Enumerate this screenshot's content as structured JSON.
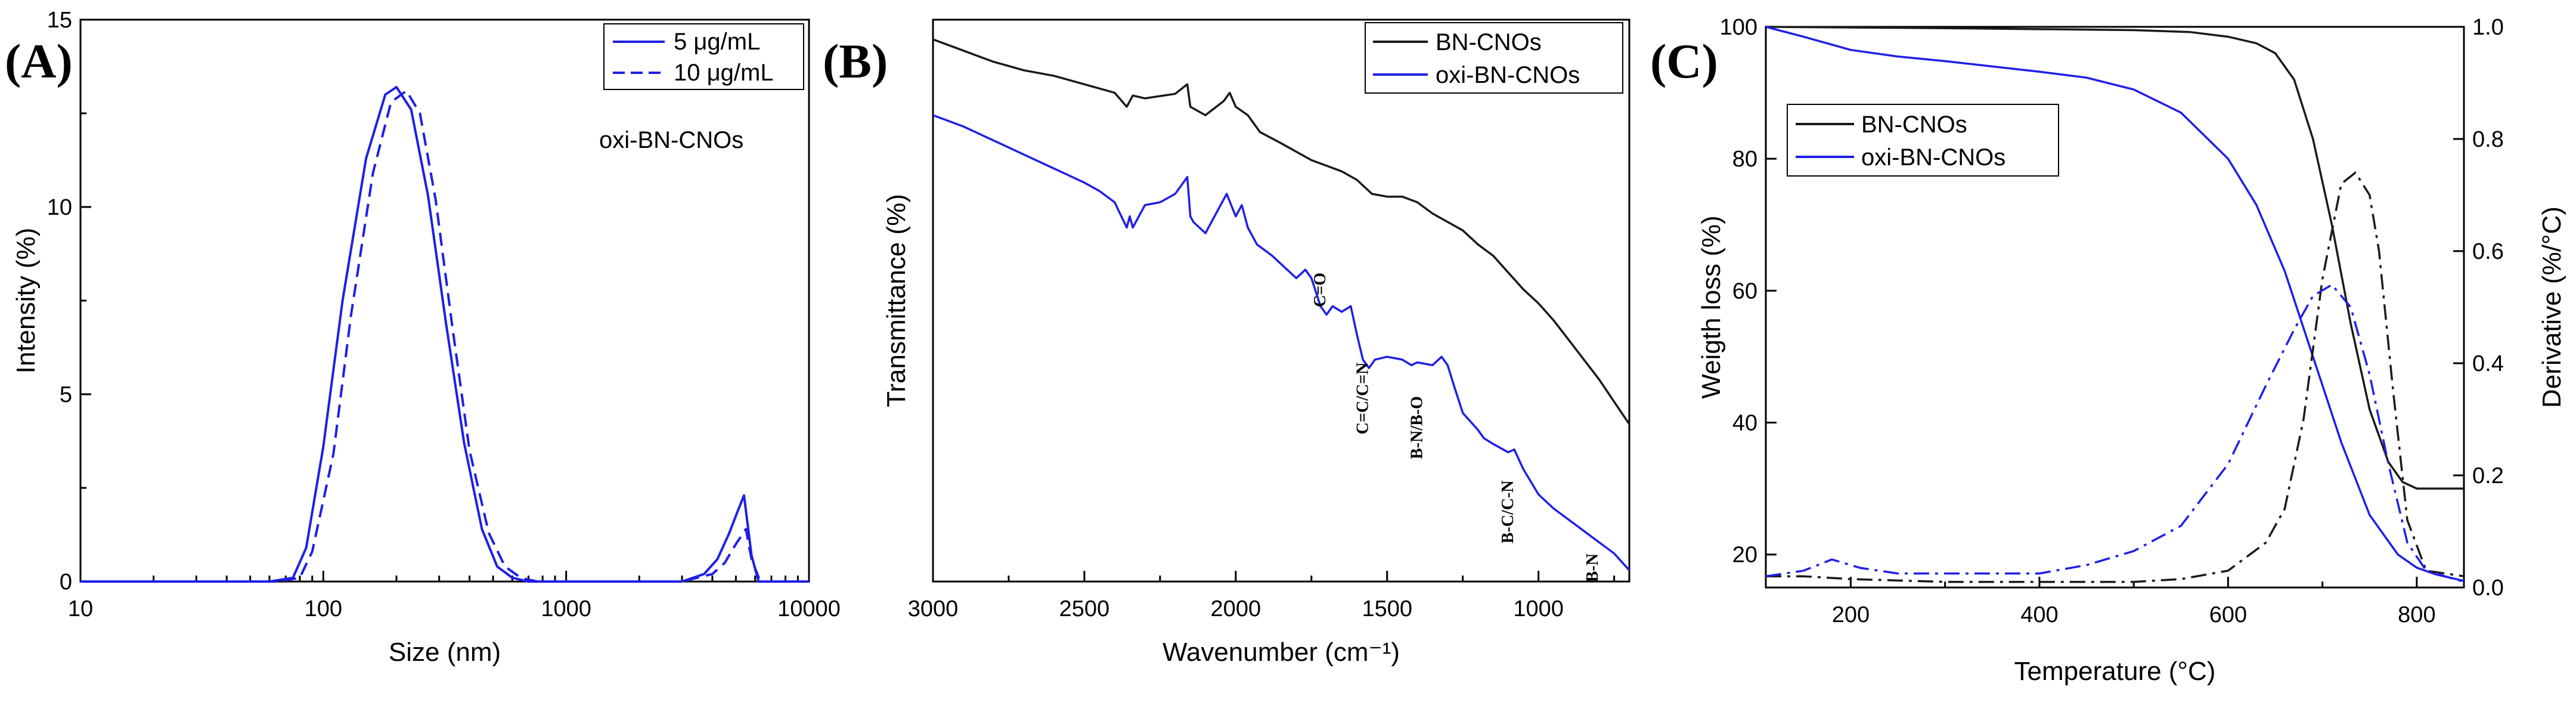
{
  "colors": {
    "blue": "#1f1fe6",
    "black": "#1a1a1a"
  },
  "chart_data": [
    {
      "type": "line",
      "panel_label": "(A)",
      "xlabel": "Size (nm)",
      "ylabel": "Intensity (%)",
      "xscale": "log",
      "xlim": [
        10,
        10000
      ],
      "ylim": [
        0,
        15
      ],
      "x_ticks": [
        "10",
        "100",
        "1000",
        "10000"
      ],
      "y_ticks": [
        "0",
        "5",
        "10",
        "15"
      ],
      "annotation": "oxi-BN-CNOs",
      "legend": [
        "5 μg/mL",
        "10 μg/mL"
      ],
      "series": [
        {
          "name": "5 μg/mL",
          "style": "solid",
          "x": [
            10,
            60,
            75,
            85,
            100,
            120,
            150,
            180,
            200,
            230,
            270,
            320,
            380,
            450,
            520,
            600,
            700,
            1000,
            2000,
            3000,
            3700,
            4200,
            4700,
            5100,
            5400,
            5800,
            6200,
            7000,
            10000
          ],
          "y": [
            0,
            0,
            0.1,
            0.9,
            3.6,
            7.5,
            11.3,
            13.0,
            13.2,
            12.6,
            10.3,
            6.9,
            3.7,
            1.4,
            0.4,
            0.1,
            0,
            0,
            0,
            0,
            0.2,
            0.6,
            1.3,
            1.9,
            2.3,
            0.7,
            0,
            0,
            0
          ]
        },
        {
          "name": "10 μg/mL",
          "style": "dashed",
          "x": [
            10,
            65,
            80,
            90,
            110,
            130,
            160,
            190,
            220,
            250,
            290,
            340,
            400,
            480,
            560,
            650,
            760,
            1000,
            2000,
            3000,
            4000,
            4500,
            5000,
            5500,
            5800,
            6300,
            7000,
            10000
          ],
          "y": [
            0,
            0,
            0.1,
            0.8,
            3.4,
            7.1,
            10.9,
            12.8,
            13.1,
            12.5,
            10.2,
            6.8,
            3.5,
            1.3,
            0.4,
            0.1,
            0,
            0,
            0,
            0,
            0.2,
            0.5,
            1.0,
            1.4,
            0.6,
            0,
            0,
            0
          ]
        }
      ]
    },
    {
      "type": "line",
      "panel_label": "(B)",
      "xlabel": "Wavenumber (cm⁻¹)",
      "ylabel": "Transmittance (%)",
      "xlim": [
        3000,
        700
      ],
      "ylim": [
        0,
        100
      ],
      "x_ticks": [
        "3000",
        "2500",
        "2000",
        "1500",
        "1000"
      ],
      "legend": [
        "BN-CNOs",
        "oxi-BN-CNOs"
      ],
      "peak_labels": [
        {
          "text": "C=O",
          "wavenumber": 1700,
          "y": 55
        },
        {
          "text": "C=C/C=N",
          "wavenumber": 1560,
          "y": 39
        },
        {
          "text": "B-N/B-O",
          "wavenumber": 1380,
          "y": 33
        },
        {
          "text": "B-C/C-N",
          "wavenumber": 1080,
          "y": 18
        },
        {
          "text": "B-N",
          "wavenumber": 800,
          "y": 5
        }
      ],
      "series": [
        {
          "name": "BN-CNOs",
          "style": "solid",
          "x": [
            3000,
            2900,
            2800,
            2700,
            2600,
            2500,
            2400,
            2360,
            2340,
            2300,
            2200,
            2160,
            2150,
            2100,
            2040,
            2020,
            2000,
            1960,
            1920,
            1850,
            1800,
            1750,
            1700,
            1650,
            1600,
            1550,
            1500,
            1450,
            1400,
            1350,
            1300,
            1250,
            1200,
            1150,
            1100,
            1050,
            1000,
            950,
            900,
            850,
            800,
            750,
            700
          ],
          "y": [
            96.5,
            94.5,
            92.5,
            91,
            90,
            88.5,
            87,
            84.5,
            86.5,
            86,
            86.8,
            88.5,
            84.5,
            83,
            85.5,
            87,
            84.5,
            83,
            80,
            78,
            76.5,
            75,
            74,
            73,
            71.5,
            69,
            68.5,
            68.5,
            67.5,
            65.5,
            64,
            62.5,
            60,
            58,
            55,
            52,
            49.5,
            46.5,
            43,
            39.5,
            36,
            32,
            28
          ]
        },
        {
          "name": "oxi-BN-CNOs",
          "style": "solid",
          "x": [
            3000,
            2900,
            2800,
            2700,
            2600,
            2500,
            2450,
            2400,
            2360,
            2350,
            2340,
            2300,
            2250,
            2200,
            2160,
            2150,
            2140,
            2100,
            2050,
            2030,
            2000,
            1980,
            1960,
            1930,
            1880,
            1850,
            1800,
            1770,
            1750,
            1720,
            1700,
            1680,
            1650,
            1620,
            1600,
            1580,
            1560,
            1540,
            1500,
            1450,
            1420,
            1400,
            1350,
            1320,
            1300,
            1280,
            1250,
            1200,
            1180,
            1150,
            1100,
            1080,
            1050,
            1000,
            950,
            900,
            850,
            800,
            750,
            700
          ],
          "y": [
            83,
            81,
            78.5,
            76,
            73.5,
            71,
            69.5,
            67.5,
            63,
            65,
            63,
            67,
            67.5,
            69,
            72,
            65,
            64,
            62,
            67,
            69,
            65,
            67,
            63,
            60,
            58,
            56.5,
            54,
            55.5,
            54,
            49,
            47.5,
            49,
            48,
            49,
            44,
            39.5,
            38,
            39.5,
            40,
            39.5,
            38.5,
            39,
            38.5,
            40,
            38.5,
            35,
            30,
            27,
            25.5,
            24.5,
            23,
            23.5,
            20,
            15.5,
            13,
            11,
            9,
            7,
            5,
            2
          ]
        }
      ]
    },
    {
      "type": "line",
      "panel_label": "(C)",
      "xlabel": "Temperature (°C)",
      "ylabel": "Weigth loss (%)",
      "y2label": "Derivative (%/°C)",
      "xlim": [
        110,
        850
      ],
      "ylim": [
        15,
        100
      ],
      "y2lim": [
        0,
        1.0
      ],
      "x_ticks": [
        "200",
        "400",
        "600",
        "800"
      ],
      "y_ticks": [
        "20",
        "40",
        "60",
        "80",
        "100"
      ],
      "y2_ticks": [
        "0.0",
        "0.2",
        "0.4",
        "0.6",
        "0.8",
        "1.0"
      ],
      "legend": [
        "BN-CNOs",
        "oxi-BN-CNOs"
      ],
      "series": [
        {
          "name": "BN-CNOs",
          "axis": "left",
          "style": "solid",
          "color": "black",
          "x": [
            110,
            300,
            500,
            560,
            600,
            630,
            650,
            670,
            690,
            710,
            730,
            750,
            770,
            785,
            800,
            850
          ],
          "y": [
            100,
            99.8,
            99.5,
            99.2,
            98.5,
            97.5,
            96,
            92,
            83,
            70,
            55,
            42,
            34,
            31,
            30,
            30
          ]
        },
        {
          "name": "oxi-BN-CNOs",
          "axis": "left",
          "style": "solid",
          "color": "blue",
          "x": [
            110,
            150,
            200,
            250,
            300,
            350,
            400,
            450,
            500,
            550,
            600,
            630,
            660,
            690,
            720,
            750,
            780,
            800,
            820,
            850
          ],
          "y": [
            100,
            98.5,
            96.5,
            95.5,
            94.8,
            94,
            93.2,
            92.3,
            90.5,
            87,
            80,
            73,
            63,
            50,
            37,
            26,
            20,
            18,
            17,
            16
          ]
        },
        {
          "name": "BN-CNOs derivative",
          "axis": "right",
          "style": "dashdot",
          "color": "black",
          "x": [
            110,
            150,
            200,
            300,
            400,
            500,
            550,
            600,
            640,
            660,
            680,
            700,
            720,
            735,
            750,
            760,
            775,
            790,
            810,
            850
          ],
          "y": [
            0.02,
            0.02,
            0.015,
            0.01,
            0.01,
            0.01,
            0.015,
            0.03,
            0.08,
            0.14,
            0.3,
            0.55,
            0.72,
            0.74,
            0.7,
            0.6,
            0.35,
            0.12,
            0.03,
            0.02
          ]
        },
        {
          "name": "oxi-BN-CNOs derivative",
          "axis": "right",
          "style": "dashdot",
          "color": "blue",
          "x": [
            110,
            150,
            180,
            210,
            250,
            300,
            400,
            450,
            500,
            550,
            600,
            640,
            670,
            690,
            710,
            730,
            750,
            770,
            790,
            810,
            850
          ],
          "y": [
            0.02,
            0.03,
            0.05,
            0.035,
            0.025,
            0.025,
            0.025,
            0.04,
            0.065,
            0.11,
            0.22,
            0.36,
            0.46,
            0.52,
            0.54,
            0.5,
            0.38,
            0.22,
            0.08,
            0.03,
            0.01
          ]
        }
      ]
    }
  ]
}
